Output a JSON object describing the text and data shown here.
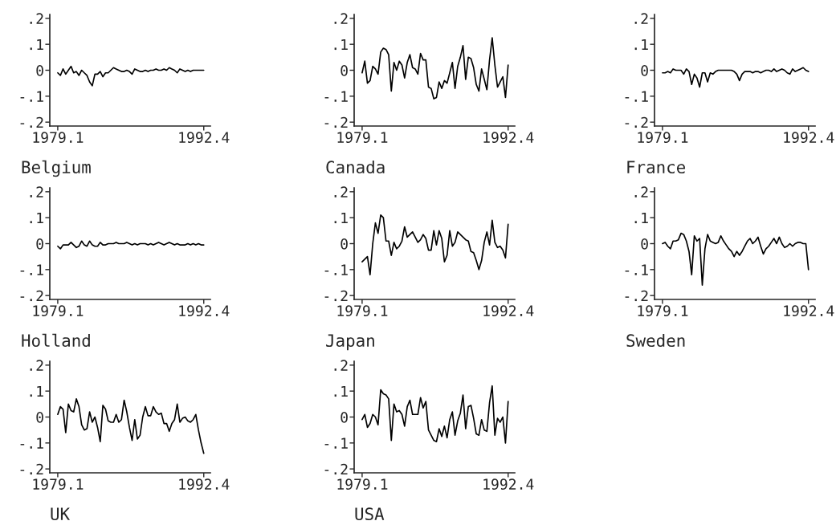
{
  "chart_data": [
    {
      "type": "line",
      "xlabel": "Belgium",
      "color": "#000000",
      "ylim": [
        -0.215,
        0.215
      ],
      "yticks": [
        {
          "value": -0.2,
          "label": "-.2"
        },
        {
          "value": -0.1,
          "label": "-.1"
        },
        {
          "value": 0,
          "label": "0"
        },
        {
          "value": 0.1,
          "label": ".1"
        },
        {
          "value": 0.2,
          "label": ".2"
        }
      ],
      "categories": [
        "1979.1",
        null,
        null,
        null,
        null,
        null,
        null,
        null,
        null,
        null,
        null,
        null,
        null,
        null,
        null,
        null,
        null,
        null,
        null,
        null,
        null,
        null,
        null,
        null,
        null,
        null,
        null,
        null,
        null,
        null,
        null,
        null,
        null,
        null,
        null,
        null,
        null,
        null,
        null,
        null,
        null,
        null,
        null,
        null,
        null,
        null,
        null,
        null,
        null,
        null,
        null,
        null,
        null,
        null,
        null,
        "1992.4"
      ],
      "values": [
        -0.01,
        -0.02,
        0.005,
        -0.015,
        0,
        0.015,
        -0.01,
        -0.005,
        -0.02,
        0,
        -0.01,
        -0.02,
        -0.045,
        -0.06,
        -0.015,
        -0.015,
        -0.005,
        -0.025,
        -0.01,
        -0.01,
        0,
        0.01,
        0.005,
        0,
        -0.005,
        -0.005,
        0,
        -0.005,
        -0.015,
        0.005,
        0,
        -0.005,
        -0.005,
        0,
        -0.005,
        0,
        0,
        0.005,
        0,
        0,
        0.005,
        0,
        0.01,
        0.005,
        0,
        -0.01,
        0.005,
        0,
        -0.005,
        0,
        -0.005,
        0,
        0,
        0,
        0,
        0
      ]
    },
    {
      "type": "line",
      "xlabel": "Canada",
      "color": "#000000",
      "ylim": [
        -0.215,
        0.215
      ],
      "yticks": [
        {
          "value": -0.2,
          "label": "-.2"
        },
        {
          "value": -0.1,
          "label": "-.1"
        },
        {
          "value": 0,
          "label": "0"
        },
        {
          "value": 0.1,
          "label": ".1"
        },
        {
          "value": 0.2,
          "label": ".2"
        }
      ],
      "categories": [
        "1979.1",
        null,
        null,
        null,
        null,
        null,
        null,
        null,
        null,
        null,
        null,
        null,
        null,
        null,
        null,
        null,
        null,
        null,
        null,
        null,
        null,
        null,
        null,
        null,
        null,
        null,
        null,
        null,
        null,
        null,
        null,
        null,
        null,
        null,
        null,
        null,
        null,
        null,
        null,
        null,
        null,
        null,
        null,
        null,
        null,
        null,
        null,
        null,
        null,
        null,
        null,
        null,
        null,
        null,
        null,
        "1992.4"
      ],
      "values": [
        -0.01,
        0.035,
        -0.05,
        -0.04,
        0.015,
        0.005,
        -0.015,
        0.07,
        0.085,
        0.08,
        0.06,
        -0.08,
        0.03,
        0,
        0.035,
        0.02,
        -0.03,
        0.03,
        0.06,
        0.01,
        0.005,
        -0.015,
        0.065,
        0.04,
        0.04,
        -0.065,
        -0.07,
        -0.11,
        -0.105,
        -0.045,
        -0.07,
        -0.04,
        -0.05,
        -0.01,
        0.03,
        -0.07,
        0.015,
        0.05,
        0.095,
        -0.035,
        0.05,
        0.045,
        0.01,
        -0.055,
        -0.08,
        0.005,
        -0.035,
        -0.075,
        0.04,
        0.125,
        0.02,
        -0.065,
        -0.045,
        -0.025,
        -0.105,
        0.02
      ]
    },
    {
      "type": "line",
      "xlabel": "France",
      "color": "#000000",
      "ylim": [
        -0.215,
        0.215
      ],
      "yticks": [
        {
          "value": -0.2,
          "label": "-.2"
        },
        {
          "value": -0.1,
          "label": "-.1"
        },
        {
          "value": 0,
          "label": "0"
        },
        {
          "value": 0.1,
          "label": ".1"
        },
        {
          "value": 0.2,
          "label": ".2"
        }
      ],
      "categories": [
        "1979.1",
        null,
        null,
        null,
        null,
        null,
        null,
        null,
        null,
        null,
        null,
        null,
        null,
        null,
        null,
        null,
        null,
        null,
        null,
        null,
        null,
        null,
        null,
        null,
        null,
        null,
        null,
        null,
        null,
        null,
        null,
        null,
        null,
        null,
        null,
        null,
        null,
        null,
        null,
        null,
        null,
        null,
        null,
        null,
        null,
        null,
        null,
        null,
        null,
        null,
        null,
        null,
        null,
        null,
        null,
        "1992.4"
      ],
      "values": [
        -0.01,
        -0.01,
        -0.005,
        -0.01,
        0.005,
        0,
        0,
        0,
        -0.015,
        0.005,
        -0.005,
        -0.055,
        -0.015,
        -0.03,
        -0.065,
        -0.01,
        -0.01,
        -0.045,
        -0.01,
        -0.015,
        -0.005,
        0,
        0,
        0,
        0,
        0,
        0,
        -0.005,
        -0.015,
        -0.04,
        -0.015,
        -0.005,
        -0.005,
        -0.005,
        -0.01,
        -0.005,
        -0.005,
        -0.01,
        -0.005,
        0,
        0,
        -0.005,
        0.005,
        -0.005,
        0,
        0.005,
        0,
        -0.01,
        -0.015,
        0.005,
        -0.005,
        0,
        0.005,
        0.01,
        0,
        -0.005
      ]
    },
    {
      "type": "line",
      "xlabel": "Holland",
      "color": "#000000",
      "ylim": [
        -0.215,
        0.215
      ],
      "yticks": [
        {
          "value": -0.2,
          "label": "-.2"
        },
        {
          "value": -0.1,
          "label": "-.1"
        },
        {
          "value": 0,
          "label": "0"
        },
        {
          "value": 0.1,
          "label": ".1"
        },
        {
          "value": 0.2,
          "label": ".2"
        }
      ],
      "categories": [
        "1979.1",
        null,
        null,
        null,
        null,
        null,
        null,
        null,
        null,
        null,
        null,
        null,
        null,
        null,
        null,
        null,
        null,
        null,
        null,
        null,
        null,
        null,
        null,
        null,
        null,
        null,
        null,
        null,
        null,
        null,
        null,
        null,
        null,
        null,
        null,
        null,
        null,
        null,
        null,
        null,
        null,
        null,
        null,
        null,
        null,
        null,
        null,
        null,
        null,
        null,
        null,
        null,
        null,
        null,
        null,
        "1992.4"
      ],
      "values": [
        -0.01,
        -0.02,
        -0.005,
        -0.005,
        -0.005,
        0.005,
        -0.005,
        -0.015,
        -0.01,
        0.01,
        -0.005,
        -0.01,
        0.01,
        -0.005,
        -0.01,
        -0.01,
        0.005,
        -0.005,
        -0.005,
        0,
        0,
        0,
        0.005,
        0,
        0,
        0,
        0.005,
        0,
        -0.005,
        0,
        -0.005,
        0,
        0,
        0,
        -0.005,
        0,
        -0.005,
        0,
        0.005,
        0,
        -0.005,
        0,
        0.005,
        0,
        -0.005,
        0,
        -0.005,
        -0.005,
        -0.005,
        0,
        -0.005,
        0,
        -0.005,
        0,
        -0.005,
        -0.005
      ]
    },
    {
      "type": "line",
      "xlabel": "Japan",
      "color": "#000000",
      "ylim": [
        -0.215,
        0.215
      ],
      "yticks": [
        {
          "value": -0.2,
          "label": "-.2"
        },
        {
          "value": -0.1,
          "label": "-.1"
        },
        {
          "value": 0,
          "label": "0"
        },
        {
          "value": 0.1,
          "label": ".1"
        },
        {
          "value": 0.2,
          "label": ".2"
        }
      ],
      "categories": [
        "1979.1",
        null,
        null,
        null,
        null,
        null,
        null,
        null,
        null,
        null,
        null,
        null,
        null,
        null,
        null,
        null,
        null,
        null,
        null,
        null,
        null,
        null,
        null,
        null,
        null,
        null,
        null,
        null,
        null,
        null,
        null,
        null,
        null,
        null,
        null,
        null,
        null,
        null,
        null,
        null,
        null,
        null,
        null,
        null,
        null,
        null,
        null,
        null,
        null,
        null,
        null,
        null,
        null,
        null,
        null,
        "1992.4"
      ],
      "values": [
        -0.07,
        -0.06,
        -0.05,
        -0.12,
        0,
        0.08,
        0.04,
        0.11,
        0.1,
        0.01,
        0.01,
        -0.045,
        0.005,
        -0.02,
        -0.01,
        0.01,
        0.065,
        0.025,
        0.035,
        0.045,
        0.025,
        0.005,
        0.015,
        0.035,
        0.02,
        -0.025,
        -0.025,
        0.05,
        -0.005,
        0.05,
        0.02,
        -0.07,
        -0.045,
        0.05,
        -0.01,
        0.005,
        0.045,
        0.035,
        0.025,
        0.015,
        0.01,
        -0.03,
        -0.035,
        -0.065,
        -0.1,
        -0.065,
        0.005,
        0.045,
        -0.005,
        0.09,
        0.005,
        -0.015,
        -0.01,
        -0.025,
        -0.055,
        0.075
      ]
    },
    {
      "type": "line",
      "xlabel": "Sweden",
      "color": "#000000",
      "ylim": [
        -0.215,
        0.215
      ],
      "yticks": [
        {
          "value": -0.2,
          "label": "-.2"
        },
        {
          "value": -0.1,
          "label": "-.1"
        },
        {
          "value": 0,
          "label": "0"
        },
        {
          "value": 0.1,
          "label": ".1"
        },
        {
          "value": 0.2,
          "label": ".2"
        }
      ],
      "categories": [
        "1979.1",
        null,
        null,
        null,
        null,
        null,
        null,
        null,
        null,
        null,
        null,
        null,
        null,
        null,
        null,
        null,
        null,
        null,
        null,
        null,
        null,
        null,
        null,
        null,
        null,
        null,
        null,
        null,
        null,
        null,
        null,
        null,
        null,
        null,
        null,
        null,
        null,
        null,
        null,
        null,
        null,
        null,
        null,
        null,
        null,
        null,
        null,
        null,
        null,
        null,
        null,
        null,
        null,
        null,
        null,
        "1992.4"
      ],
      "values": [
        0,
        0.005,
        -0.01,
        -0.02,
        0.01,
        0.01,
        0.015,
        0.04,
        0.035,
        0.01,
        -0.03,
        -0.12,
        0.03,
        0.01,
        0.02,
        -0.16,
        -0.02,
        0.035,
        0.01,
        0.005,
        0,
        0.005,
        0.03,
        0.01,
        -0.005,
        -0.02,
        -0.03,
        -0.05,
        -0.03,
        -0.045,
        -0.03,
        -0.01,
        0.01,
        0.02,
        0,
        0.01,
        0.025,
        -0.01,
        -0.04,
        -0.02,
        -0.01,
        0.005,
        0.02,
        0,
        0.025,
        0,
        -0.015,
        -0.01,
        0,
        -0.01,
        0,
        0.005,
        0.005,
        0,
        0,
        -0.1
      ]
    },
    {
      "type": "line",
      "xlabel": "UK",
      "color": "#000000",
      "ylim": [
        -0.215,
        0.215
      ],
      "yticks": [
        {
          "value": -0.2,
          "label": "-.2"
        },
        {
          "value": -0.1,
          "label": "-.1"
        },
        {
          "value": 0,
          "label": "0"
        },
        {
          "value": 0.1,
          "label": ".1"
        },
        {
          "value": 0.2,
          "label": ".2"
        }
      ],
      "categories": [
        "1979.1",
        null,
        null,
        null,
        null,
        null,
        null,
        null,
        null,
        null,
        null,
        null,
        null,
        null,
        null,
        null,
        null,
        null,
        null,
        null,
        null,
        null,
        null,
        null,
        null,
        null,
        null,
        null,
        null,
        null,
        null,
        null,
        null,
        null,
        null,
        null,
        null,
        null,
        null,
        null,
        null,
        null,
        null,
        null,
        null,
        null,
        null,
        null,
        null,
        null,
        null,
        null,
        null,
        null,
        null,
        "1992.4"
      ],
      "values": [
        0.01,
        0.04,
        0.03,
        -0.06,
        0.05,
        0.025,
        0.02,
        0.07,
        0.04,
        -0.03,
        -0.05,
        -0.045,
        0.02,
        -0.02,
        0,
        -0.04,
        -0.095,
        0.045,
        0.03,
        -0.015,
        -0.02,
        -0.02,
        0.01,
        -0.02,
        -0.01,
        0.065,
        0.02,
        -0.04,
        -0.09,
        -0.01,
        -0.085,
        -0.07,
        0,
        0.04,
        0.005,
        0.005,
        0.04,
        0.02,
        0.01,
        0.015,
        -0.025,
        -0.025,
        -0.055,
        -0.025,
        -0.01,
        0.05,
        -0.02,
        -0.005,
        0,
        -0.015,
        -0.02,
        -0.01,
        0.01,
        -0.05,
        -0.1,
        -0.14
      ]
    },
    {
      "type": "line",
      "xlabel": "USA",
      "color": "#000000",
      "ylim": [
        -0.215,
        0.215
      ],
      "yticks": [
        {
          "value": -0.2,
          "label": "-.2"
        },
        {
          "value": -0.1,
          "label": "-.1"
        },
        {
          "value": 0,
          "label": "0"
        },
        {
          "value": 0.1,
          "label": ".1"
        },
        {
          "value": 0.2,
          "label": ".2"
        }
      ],
      "categories": [
        "1979.1",
        null,
        null,
        null,
        null,
        null,
        null,
        null,
        null,
        null,
        null,
        null,
        null,
        null,
        null,
        null,
        null,
        null,
        null,
        null,
        null,
        null,
        null,
        null,
        null,
        null,
        null,
        null,
        null,
        null,
        null,
        null,
        null,
        null,
        null,
        null,
        null,
        null,
        null,
        null,
        null,
        null,
        null,
        null,
        null,
        null,
        null,
        null,
        null,
        null,
        null,
        null,
        null,
        null,
        null,
        "1992.4"
      ],
      "values": [
        -0.01,
        0.01,
        -0.04,
        -0.025,
        0.01,
        0,
        -0.03,
        0.105,
        0.09,
        0.085,
        0.07,
        -0.09,
        0.05,
        0.02,
        0.025,
        0.01,
        -0.035,
        0.04,
        0.065,
        0.01,
        0.01,
        0.01,
        0.075,
        0.035,
        0.06,
        -0.05,
        -0.07,
        -0.09,
        -0.095,
        -0.045,
        -0.075,
        -0.035,
        -0.08,
        -0.01,
        0.02,
        -0.07,
        -0.015,
        0.015,
        0.085,
        -0.045,
        0.04,
        0.045,
        -0.005,
        -0.065,
        -0.07,
        -0.01,
        -0.05,
        -0.055,
        0.055,
        0.12,
        -0.07,
        -0.005,
        -0.02,
        0,
        -0.1,
        0.06
      ]
    }
  ]
}
